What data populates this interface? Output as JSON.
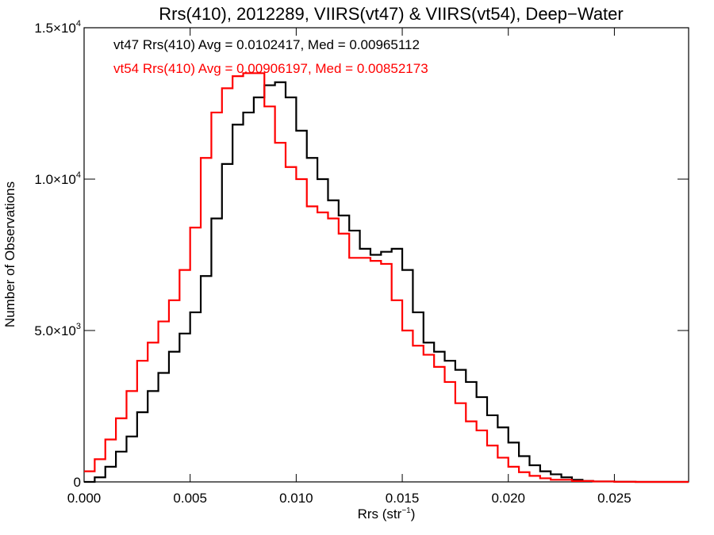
{
  "chart_data": {
    "type": "line",
    "title": "Rrs(410), 2012289, VIIRS(vt47) & VIIRS(vt54), Deep−Water",
    "xlabel": "Rrs (str",
    "xlabel_sup": "−1",
    "xlabel_close": ")",
    "ylabel": "Number of Observations",
    "xlim": [
      0.0,
      0.0285
    ],
    "ylim": [
      0,
      15000
    ],
    "x_ticks": [
      {
        "value": 0.0,
        "label": "0.000"
      },
      {
        "value": 0.005,
        "label": "0.005"
      },
      {
        "value": 0.01,
        "label": "0.010"
      },
      {
        "value": 0.015,
        "label": "0.015"
      },
      {
        "value": 0.02,
        "label": "0.020"
      },
      {
        "value": 0.025,
        "label": "0.025"
      }
    ],
    "y_ticks": [
      {
        "value": 0,
        "label": "0",
        "exp": ""
      },
      {
        "value": 5000,
        "label": "5.0×10",
        "exp": "3"
      },
      {
        "value": 10000,
        "label": "1.0×10",
        "exp": "4"
      },
      {
        "value": 15000,
        "label": "1.5×10",
        "exp": "4"
      }
    ],
    "grid": false,
    "legend_position": "top-left",
    "series": [
      {
        "name": "vt47",
        "color": "#000000",
        "annotation": "vt47 Rrs(410) Avg = 0.0102417, Med = 0.00965112",
        "points": [
          [
            0.0,
            0
          ],
          [
            0.0005,
            150
          ],
          [
            0.001,
            500
          ],
          [
            0.0015,
            1000
          ],
          [
            0.002,
            1500
          ],
          [
            0.0025,
            2300
          ],
          [
            0.003,
            3000
          ],
          [
            0.0035,
            3600
          ],
          [
            0.004,
            4300
          ],
          [
            0.0045,
            4900
          ],
          [
            0.005,
            5600
          ],
          [
            0.0055,
            6800
          ],
          [
            0.006,
            8700
          ],
          [
            0.0065,
            10500
          ],
          [
            0.007,
            11800
          ],
          [
            0.0075,
            12200
          ],
          [
            0.008,
            12700
          ],
          [
            0.0085,
            13100
          ],
          [
            0.009,
            13200
          ],
          [
            0.0095,
            12700
          ],
          [
            0.01,
            11600
          ],
          [
            0.0105,
            10700
          ],
          [
            0.011,
            10000
          ],
          [
            0.0115,
            9300
          ],
          [
            0.012,
            8800
          ],
          [
            0.0125,
            8300
          ],
          [
            0.013,
            7700
          ],
          [
            0.0135,
            7500
          ],
          [
            0.014,
            7600
          ],
          [
            0.0145,
            7700
          ],
          [
            0.015,
            7000
          ],
          [
            0.0155,
            5600
          ],
          [
            0.016,
            4600
          ],
          [
            0.0165,
            4300
          ],
          [
            0.017,
            4000
          ],
          [
            0.0175,
            3700
          ],
          [
            0.018,
            3300
          ],
          [
            0.0185,
            2800
          ],
          [
            0.019,
            2200
          ],
          [
            0.0195,
            1800
          ],
          [
            0.02,
            1300
          ],
          [
            0.0205,
            850
          ],
          [
            0.021,
            550
          ],
          [
            0.0215,
            350
          ],
          [
            0.022,
            250
          ],
          [
            0.0225,
            150
          ],
          [
            0.023,
            70
          ],
          [
            0.0235,
            30
          ],
          [
            0.024,
            15
          ],
          [
            0.025,
            5
          ],
          [
            0.026,
            0
          ],
          [
            0.0285,
            0
          ]
        ]
      },
      {
        "name": "vt54",
        "color": "#ff0000",
        "annotation": "vt54 Rrs(410) Avg = 0.00906197, Med = 0.00852173",
        "points": [
          [
            0.0,
            350
          ],
          [
            0.0005,
            750
          ],
          [
            0.001,
            1400
          ],
          [
            0.0015,
            2100
          ],
          [
            0.002,
            3000
          ],
          [
            0.0025,
            4000
          ],
          [
            0.003,
            4600
          ],
          [
            0.0035,
            5300
          ],
          [
            0.004,
            6000
          ],
          [
            0.0045,
            7000
          ],
          [
            0.005,
            8400
          ],
          [
            0.0055,
            10700
          ],
          [
            0.006,
            12200
          ],
          [
            0.0065,
            13000
          ],
          [
            0.007,
            13400
          ],
          [
            0.0075,
            13500
          ],
          [
            0.008,
            13500
          ],
          [
            0.0085,
            12400
          ],
          [
            0.009,
            11200
          ],
          [
            0.0095,
            10400
          ],
          [
            0.01,
            10000
          ],
          [
            0.0105,
            9100
          ],
          [
            0.011,
            8900
          ],
          [
            0.0115,
            8700
          ],
          [
            0.012,
            8200
          ],
          [
            0.0125,
            7400
          ],
          [
            0.013,
            7400
          ],
          [
            0.0135,
            7300
          ],
          [
            0.014,
            7200
          ],
          [
            0.0145,
            6000
          ],
          [
            0.015,
            5000
          ],
          [
            0.0155,
            4500
          ],
          [
            0.016,
            4200
          ],
          [
            0.0165,
            3800
          ],
          [
            0.017,
            3300
          ],
          [
            0.0175,
            2600
          ],
          [
            0.018,
            2000
          ],
          [
            0.0185,
            1700
          ],
          [
            0.019,
            1200
          ],
          [
            0.0195,
            800
          ],
          [
            0.02,
            500
          ],
          [
            0.0205,
            320
          ],
          [
            0.021,
            200
          ],
          [
            0.0215,
            120
          ],
          [
            0.022,
            70
          ],
          [
            0.023,
            30
          ],
          [
            0.024,
            15
          ],
          [
            0.025,
            5
          ],
          [
            0.026,
            0
          ],
          [
            0.0285,
            0
          ]
        ]
      }
    ]
  }
}
